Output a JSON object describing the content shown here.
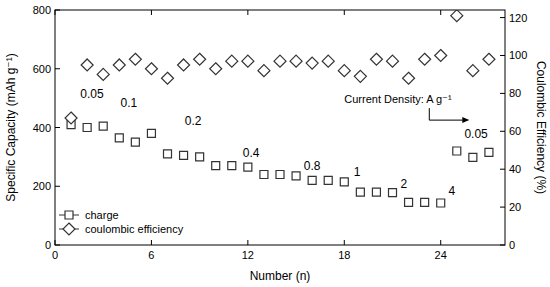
{
  "chart_data": {
    "type": "scatter",
    "x_label": "Number (n)",
    "y_label": "Specific Capacity (mAh g⁻¹)",
    "y2_label": "Coulombic Efficiency (%)",
    "x": [
      1,
      2,
      3,
      4,
      5,
      6,
      7,
      8,
      9,
      10,
      11,
      12,
      13,
      14,
      15,
      16,
      17,
      18,
      19,
      20,
      21,
      22,
      23,
      24,
      25,
      26,
      27
    ],
    "xlim": [
      0,
      28
    ],
    "xticks": [
      0,
      6,
      12,
      18,
      24
    ],
    "ylim": [
      0,
      800
    ],
    "yticks": [
      0,
      200,
      400,
      600,
      800
    ],
    "y2lim": [
      0,
      124
    ],
    "y2ticks": [
      0,
      20,
      40,
      60,
      80,
      100,
      120
    ],
    "legend": "lower left",
    "series": [
      {
        "name": "charge",
        "marker": "square",
        "color": "#333333",
        "values": [
          410,
          400,
          405,
          365,
          350,
          380,
          310,
          305,
          300,
          270,
          270,
          265,
          240,
          240,
          235,
          220,
          220,
          215,
          180,
          180,
          178,
          145,
          145,
          143,
          320,
          298,
          315
        ]
      },
      {
        "name": "coulombic efficiency",
        "marker": "diamond",
        "color": "#333333",
        "axis": "y2",
        "values": [
          67,
          95,
          90,
          95,
          98,
          93,
          88,
          95,
          98,
          93,
          97,
          97,
          92,
          97,
          97,
          96,
          97,
          92,
          89,
          98,
          97,
          88,
          98,
          100,
          121,
          92,
          98
        ]
      }
    ],
    "annotations": [
      {
        "text": "0.05",
        "x": 2.3,
        "y": 500
      },
      {
        "text": "0.1",
        "x": 4.6,
        "y": 470
      },
      {
        "text": "0.2",
        "x": 8.6,
        "y": 410
      },
      {
        "text": "0.4",
        "x": 12.2,
        "y": 300
      },
      {
        "text": "0.8",
        "x": 16.0,
        "y": 255
      },
      {
        "text": "1",
        "x": 18.8,
        "y": 235
      },
      {
        "text": "2",
        "x": 21.7,
        "y": 195
      },
      {
        "text": "4",
        "x": 24.7,
        "y": 170
      },
      {
        "text": "0.05",
        "x": 26.2,
        "y": 365
      },
      {
        "text": "Current Density: A g⁻¹",
        "x": 18.0,
        "y": 483
      }
    ]
  }
}
